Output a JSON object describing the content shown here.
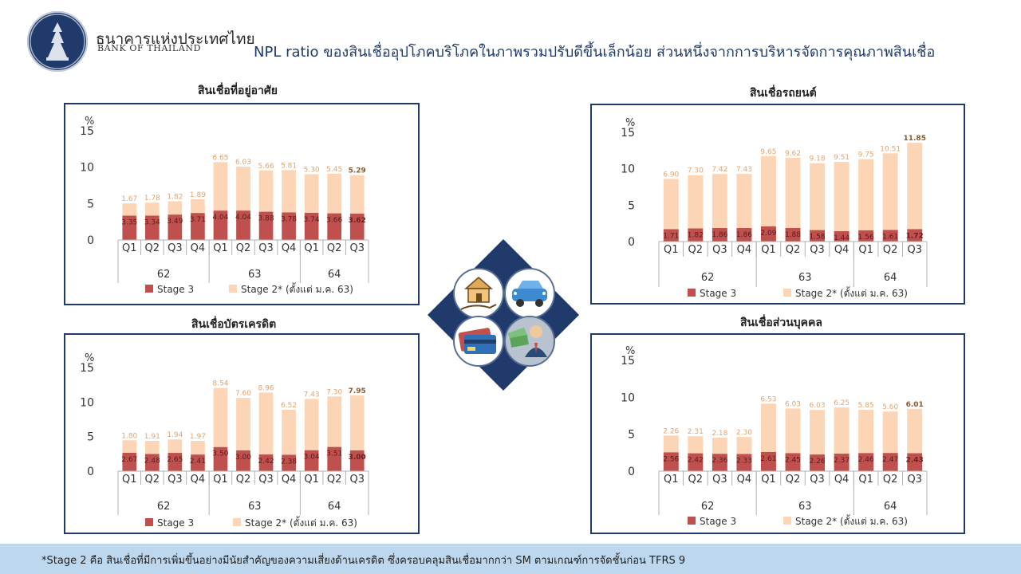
{
  "header": {
    "brand_thai": "ธนาคารแห่งประเทศไทย",
    "brand_english": "BANK OF THAILAND",
    "title": "NPL ratio ของสินเชื่ออุปโภคบริโภคในภาพรวมปรับดีขึ้นเล็กน้อย ส่วนหนึ่งจากการบริหารจัดการคุณภาพสินเชื่อ"
  },
  "footer": {
    "note": "*Stage 2 คือ สินเชื่อที่มีการเพิ่มขึ้นอย่างมีนัยสำคัญของความเสี่ยงด้านเครดิต  ซึ่งครอบคลุมสินเชื่อมากกว่า  SM ตามเกณฑ์การจัดชั้นก่อน  TFRS 9"
  },
  "center_graphic": {
    "icons": [
      "house-in-hand-icon",
      "car-icon",
      "credit-card-icon",
      "businessman-with-money-icon"
    ]
  },
  "colors": {
    "stage3": "#c0504d",
    "stage2": "#fbd5b5",
    "border": "#1f3a6b",
    "diamond": "#1f3a6b"
  },
  "chart_data": [
    {
      "id": "housing",
      "type": "bar",
      "title": "สินเชื่อที่อยู่อาศัย",
      "ylabel": "%",
      "ylim": [
        0,
        15
      ],
      "yticks": [
        0,
        5,
        10,
        15
      ],
      "categories": [
        "Q1",
        "Q2",
        "Q3",
        "Q4",
        "Q1",
        "Q2",
        "Q3",
        "Q4",
        "Q1",
        "Q2",
        "Q3"
      ],
      "years": [
        {
          "label": "62",
          "count": 4
        },
        {
          "label": "63",
          "count": 4
        },
        {
          "label": "64",
          "count": 3
        }
      ],
      "series": [
        {
          "name": "Stage 3",
          "values": [
            3.35,
            3.34,
            3.49,
            3.71,
            4.04,
            4.04,
            3.88,
            3.78,
            3.74,
            3.66,
            3.62
          ]
        },
        {
          "name": "Stage 2* (ตั้งแต่ ม.ค. 63)",
          "values": [
            1.67,
            1.78,
            1.82,
            1.89,
            6.65,
            6.03,
            5.66,
            5.81,
            5.3,
            5.45,
            5.29
          ]
        }
      ],
      "stacked": true,
      "legend": "bottom"
    },
    {
      "id": "auto",
      "type": "bar",
      "title": "สินเชื่อรถยนต์",
      "ylabel": "%",
      "ylim": [
        0,
        15
      ],
      "yticks": [
        0,
        5,
        10,
        15
      ],
      "categories": [
        "Q1",
        "Q2",
        "Q3",
        "Q4",
        "Q1",
        "Q2",
        "Q3",
        "Q4",
        "Q1",
        "Q2",
        "Q3"
      ],
      "years": [
        {
          "label": "62",
          "count": 4
        },
        {
          "label": "63",
          "count": 4
        },
        {
          "label": "64",
          "count": 3
        }
      ],
      "series": [
        {
          "name": "Stage 3",
          "values": [
            1.71,
            1.82,
            1.86,
            1.86,
            2.09,
            1.88,
            1.58,
            1.44,
            1.56,
            1.61,
            1.72
          ]
        },
        {
          "name": "Stage 2* (ตั้งแต่ ม.ค. 63)",
          "values": [
            6.9,
            7.3,
            7.42,
            7.43,
            9.65,
            9.62,
            9.18,
            9.51,
            9.75,
            10.51,
            11.85
          ]
        }
      ],
      "stacked": true,
      "legend": "bottom"
    },
    {
      "id": "credit_card",
      "type": "bar",
      "title": "สินเชื่อบัตรเครดิต",
      "ylabel": "%",
      "ylim": [
        0,
        15
      ],
      "yticks": [
        0,
        5,
        10,
        15
      ],
      "categories": [
        "Q1",
        "Q2",
        "Q3",
        "Q4",
        "Q1",
        "Q2",
        "Q3",
        "Q4",
        "Q1",
        "Q2",
        "Q3"
      ],
      "years": [
        {
          "label": "62",
          "count": 4
        },
        {
          "label": "63",
          "count": 4
        },
        {
          "label": "64",
          "count": 3
        }
      ],
      "series": [
        {
          "name": "Stage 3",
          "values": [
            2.67,
            2.48,
            2.65,
            2.41,
            3.5,
            3.0,
            2.42,
            2.38,
            3.04,
            3.51,
            3.0
          ]
        },
        {
          "name": "Stage 2* (ตั้งแต่ ม.ค. 63)",
          "values": [
            1.8,
            1.91,
            1.94,
            1.97,
            8.54,
            7.6,
            8.96,
            6.52,
            7.43,
            7.3,
            7.95
          ]
        }
      ],
      "stacked": true,
      "legend": "bottom"
    },
    {
      "id": "personal",
      "type": "bar",
      "title": "สินเชื่อส่วนบุคคล",
      "ylabel": "%",
      "ylim": [
        0,
        15
      ],
      "yticks": [
        0,
        5,
        10,
        15
      ],
      "categories": [
        "Q1",
        "Q2",
        "Q3",
        "Q4",
        "Q1",
        "Q2",
        "Q3",
        "Q4",
        "Q1",
        "Q2",
        "Q3"
      ],
      "years": [
        {
          "label": "62",
          "count": 4
        },
        {
          "label": "63",
          "count": 4
        },
        {
          "label": "64",
          "count": 3
        }
      ],
      "series": [
        {
          "name": "Stage 3",
          "values": [
            2.56,
            2.42,
            2.36,
            2.33,
            2.61,
            2.45,
            2.26,
            2.37,
            2.46,
            2.47,
            2.43
          ]
        },
        {
          "name": "Stage 2* (ตั้งแต่ ม.ค. 63)",
          "values": [
            2.26,
            2.31,
            2.18,
            2.3,
            6.53,
            6.03,
            6.03,
            6.25,
            5.85,
            5.6,
            6.01
          ]
        }
      ],
      "stacked": true,
      "legend": "bottom"
    }
  ]
}
